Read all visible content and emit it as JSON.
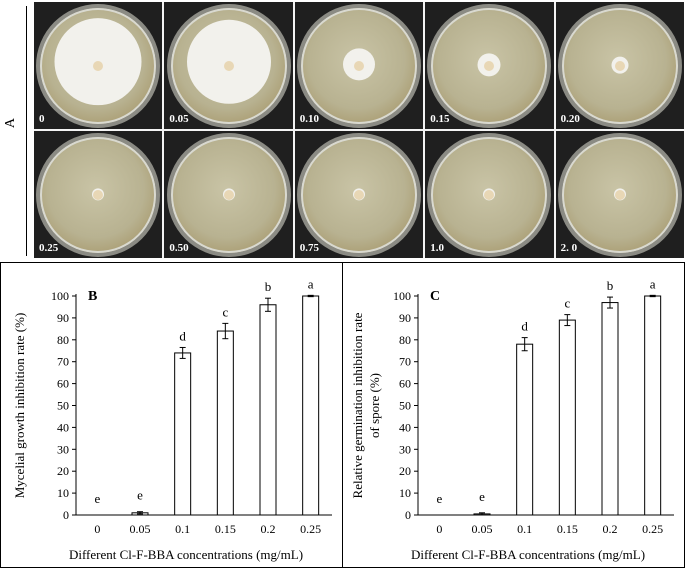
{
  "panel_a": {
    "label": "A",
    "plates": [
      {
        "conc": "0",
        "colony": 0.75
      },
      {
        "conc": "0.05",
        "colony": 0.72
      },
      {
        "conc": "0.10",
        "colony": 0.28
      },
      {
        "conc": "0.15",
        "colony": 0.2
      },
      {
        "conc": "0.20",
        "colony": 0.15
      },
      {
        "conc": "0.25",
        "colony": 0.1
      },
      {
        "conc": "0.50",
        "colony": 0.1
      },
      {
        "conc": "0.75",
        "colony": 0.1
      },
      {
        "conc": "1.0",
        "colony": 0.1
      },
      {
        "conc": "2. 0",
        "colony": 0.1
      }
    ]
  },
  "chart_data": [
    {
      "type": "bar",
      "panel_label": "B",
      "categories": [
        "0",
        "0.05",
        "0.1",
        "0.15",
        "0.2",
        "0.25"
      ],
      "values": [
        0,
        1,
        74,
        84,
        96,
        100
      ],
      "errors": [
        0,
        0.5,
        2.5,
        3.5,
        3,
        0.3
      ],
      "letters": [
        "e",
        "e",
        "d",
        "c",
        "b",
        "a"
      ],
      "ylabel": "Mycelial growth  inhibition rate (%)",
      "xlabel": "Different Cl-F-BBA concentrations (mg/mL)",
      "ylim": [
        0,
        100
      ],
      "yticks": [
        "0",
        "10",
        "20",
        "30",
        "40",
        "50",
        "60",
        "70",
        "80",
        "90",
        "100"
      ],
      "grid": false
    },
    {
      "type": "bar",
      "panel_label": "C",
      "categories": [
        "0",
        "0.05",
        "0.1",
        "0.15",
        "0.2",
        "0.25"
      ],
      "values": [
        0,
        0.5,
        78,
        89,
        97,
        100
      ],
      "errors": [
        0,
        0.5,
        3,
        2.5,
        2.5,
        0.3
      ],
      "letters": [
        "e",
        "e",
        "d",
        "c",
        "b",
        "a"
      ],
      "ylabel_lines": [
        "Relative germination  inhibition rate",
        "of spore (%)"
      ],
      "xlabel": "Different Cl-F-BBA concentrations (mg/mL)",
      "ylim": [
        0,
        100
      ],
      "yticks": [
        "0",
        "10",
        "20",
        "30",
        "40",
        "50",
        "60",
        "70",
        "80",
        "90",
        "100"
      ],
      "grid": false
    }
  ]
}
